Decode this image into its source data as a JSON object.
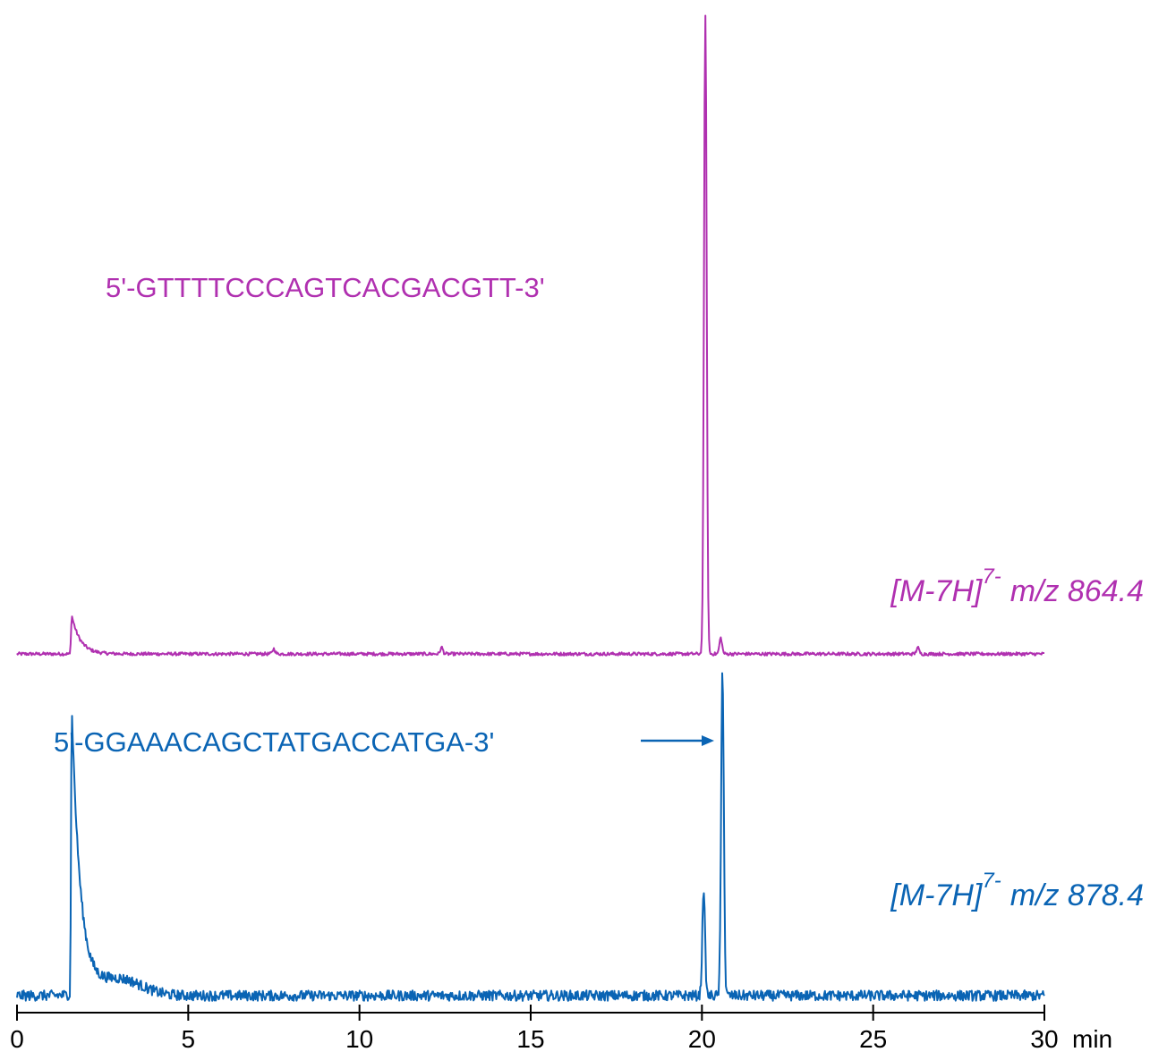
{
  "colors": {
    "trace_top": "#b030b0",
    "trace_bottom": "#0a64b4",
    "axis": "#000000"
  },
  "chart_data": {
    "type": "line",
    "x_unit": "min",
    "xlim": [
      0,
      30
    ],
    "xticks": [
      0,
      5,
      10,
      15,
      20,
      25,
      30
    ],
    "xtick_labels": [
      "0",
      "5",
      "10",
      "15",
      "20",
      "25",
      "30"
    ],
    "series": [
      {
        "name": "[M-7H]7- m/z 864.4",
        "sequence": "5'-GTTTTCCCAGTCACGACGTT-3'",
        "ion": "[M-7H]",
        "charge": "7-",
        "mz": "m/z 864.4",
        "color": "#b030b0",
        "ylim": [
          0,
          100
        ],
        "baseline": 0.6,
        "peaks": [
          {
            "t": 1.6,
            "height": 6,
            "type": "tail"
          },
          {
            "t": 20.1,
            "height": 100,
            "type": "sharp"
          },
          {
            "t": 20.55,
            "height": 2.5,
            "type": "sharp"
          },
          {
            "t": 7.5,
            "height": 0.8,
            "type": "sharp"
          },
          {
            "t": 12.4,
            "height": 1.0,
            "type": "sharp"
          },
          {
            "t": 26.3,
            "height": 1.0,
            "type": "sharp"
          }
        ]
      },
      {
        "name": "[M-7H]7- m/z 878.4",
        "sequence": "5'-GGAAACAGCTATGACCATGA-3'",
        "ion": "[M-7H]",
        "charge": "7-",
        "mz": "m/z 878.4",
        "color": "#0a64b4",
        "ylim": [
          0,
          100
        ],
        "baseline": 5,
        "peaks": [
          {
            "t": 1.6,
            "height": 88,
            "type": "tail"
          },
          {
            "t": 20.05,
            "height": 33,
            "type": "sharp"
          },
          {
            "t": 20.6,
            "height": 100,
            "type": "sharp"
          },
          {
            "t": 3.0,
            "height": 5,
            "type": "hump"
          }
        ]
      }
    ]
  }
}
